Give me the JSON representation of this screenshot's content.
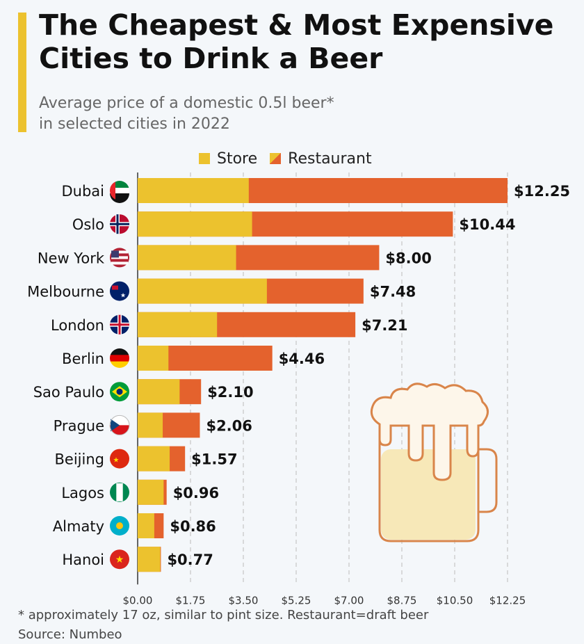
{
  "title": "The Cheapest & Most Expensive Cities to Drink a Beer",
  "subtitle_line1": "Average price of a domestic 0.5l beer*",
  "subtitle_line2": "in selected cities in 2022",
  "footnote": "* approximately 17 oz, similar to pint size. Restaurant=draft beer",
  "source": "Source: Numbeo",
  "colors": {
    "store": "#ecc22e",
    "restaurant": "#e4622d",
    "accent": "#ecc22e"
  },
  "chart_data": {
    "type": "bar",
    "orientation": "horizontal",
    "categories": [
      "Dubai",
      "Oslo",
      "New York",
      "Melbourne",
      "London",
      "Berlin",
      "Sao Paulo",
      "Prague",
      "Beijing",
      "Lagos",
      "Almaty",
      "Hanoi"
    ],
    "flag_icons": [
      "uae-flag-icon",
      "norway-flag-icon",
      "usa-flag-icon",
      "australia-flag-icon",
      "uk-flag-icon",
      "germany-flag-icon",
      "brazil-flag-icon",
      "czechia-flag-icon",
      "china-flag-icon",
      "nigeria-flag-icon",
      "kazakhstan-flag-icon",
      "vietnam-flag-icon"
    ],
    "series": [
      {
        "name": "Store",
        "values": [
          3.68,
          3.79,
          3.26,
          4.28,
          2.63,
          1.02,
          1.39,
          0.83,
          1.06,
          0.86,
          0.55,
          0.75
        ]
      },
      {
        "name": "Restaurant",
        "values": [
          12.25,
          10.44,
          8.0,
          7.48,
          7.21,
          4.46,
          2.1,
          2.06,
          1.57,
          0.96,
          0.86,
          0.77
        ]
      }
    ],
    "data_labels": [
      "$12.25",
      "$10.44",
      "$8.00",
      "$7.48",
      "$7.21",
      "$4.46",
      "$2.10",
      "$2.06",
      "$1.57",
      "$0.96",
      "$0.86",
      "$0.77"
    ],
    "x_ticks": [
      0,
      1.75,
      3.5,
      5.25,
      7,
      8.75,
      10.5,
      12.25
    ],
    "x_tick_labels": [
      "$0.00",
      "$1.75",
      "$3.50",
      "$5.25",
      "$7.00",
      "$8.75",
      "$10.50",
      "$12.25"
    ],
    "xlim": [
      0,
      12.25
    ],
    "grid": true,
    "legend": "top"
  }
}
